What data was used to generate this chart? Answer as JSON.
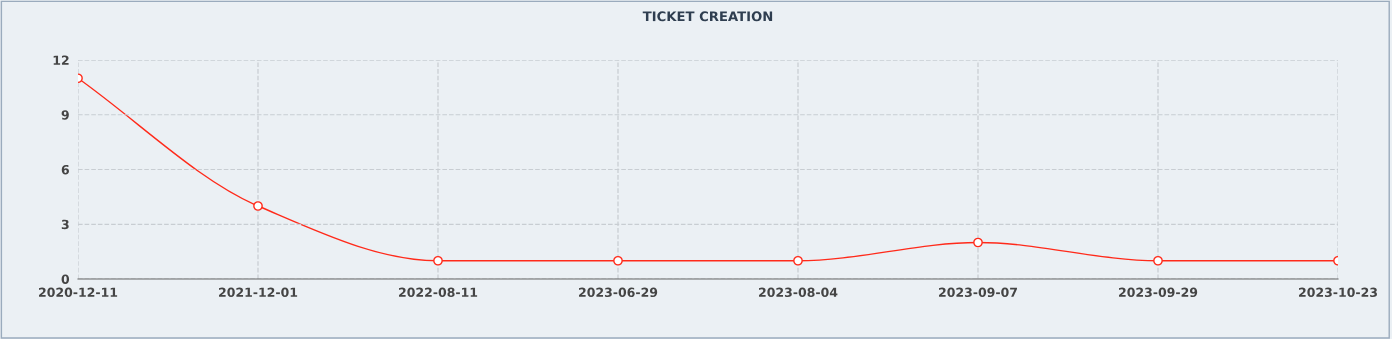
{
  "chart_data": {
    "type": "line",
    "title": "TICKET CREATION",
    "categories": [
      "2020-12-11",
      "2021-12-01",
      "2022-08-11",
      "2023-06-29",
      "2023-08-04",
      "2023-09-07",
      "2023-09-29",
      "2023-10-23"
    ],
    "series": [
      {
        "color": "#ff2a1a",
        "values": [
          11,
          4,
          1,
          1,
          1,
          2,
          1,
          1
        ]
      }
    ],
    "ylim": [
      0,
      12
    ],
    "yticks": [
      0,
      3,
      6,
      9,
      12
    ],
    "grid": true,
    "marker": "circle",
    "line_style": "solid",
    "legend": false
  }
}
